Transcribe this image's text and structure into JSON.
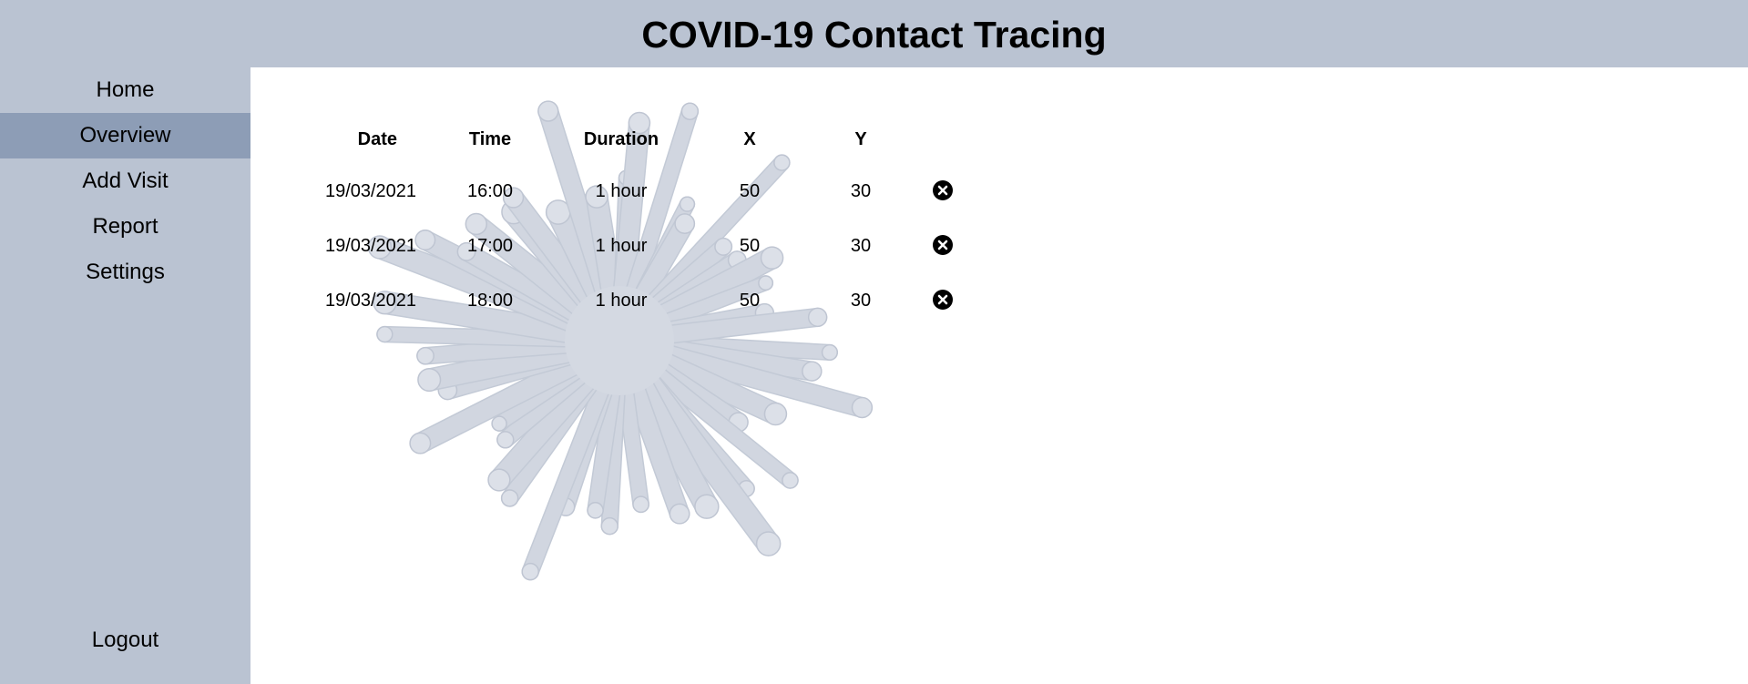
{
  "header": {
    "title": "COVID-19 Contact Tracing"
  },
  "sidebar": {
    "items": [
      {
        "label": "Home"
      },
      {
        "label": "Overview",
        "active": true
      },
      {
        "label": "Add Visit"
      },
      {
        "label": "Report"
      },
      {
        "label": "Settings"
      }
    ],
    "logout_label": "Logout"
  },
  "table": {
    "headers": [
      "Date",
      "Time",
      "Duration",
      "X",
      "Y"
    ],
    "rows": [
      {
        "date": "19/03/2021",
        "time": "16:00",
        "duration": "1 hour",
        "x": "50",
        "y": "30"
      },
      {
        "date": "19/03/2021",
        "time": "17:00",
        "duration": "1 hour",
        "x": "50",
        "y": "30"
      },
      {
        "date": "19/03/2021",
        "time": "18:00",
        "duration": "1 hour",
        "x": "50",
        "y": "30"
      }
    ]
  },
  "icons": {
    "delete": "close-circle-icon",
    "background": "virus-illustration"
  },
  "colors": {
    "header_bg": "#bac3d2",
    "sidebar_bg": "#bac3d2",
    "active_nav_bg": "#8d9db6",
    "virus_tint": "#c9cfdb"
  }
}
